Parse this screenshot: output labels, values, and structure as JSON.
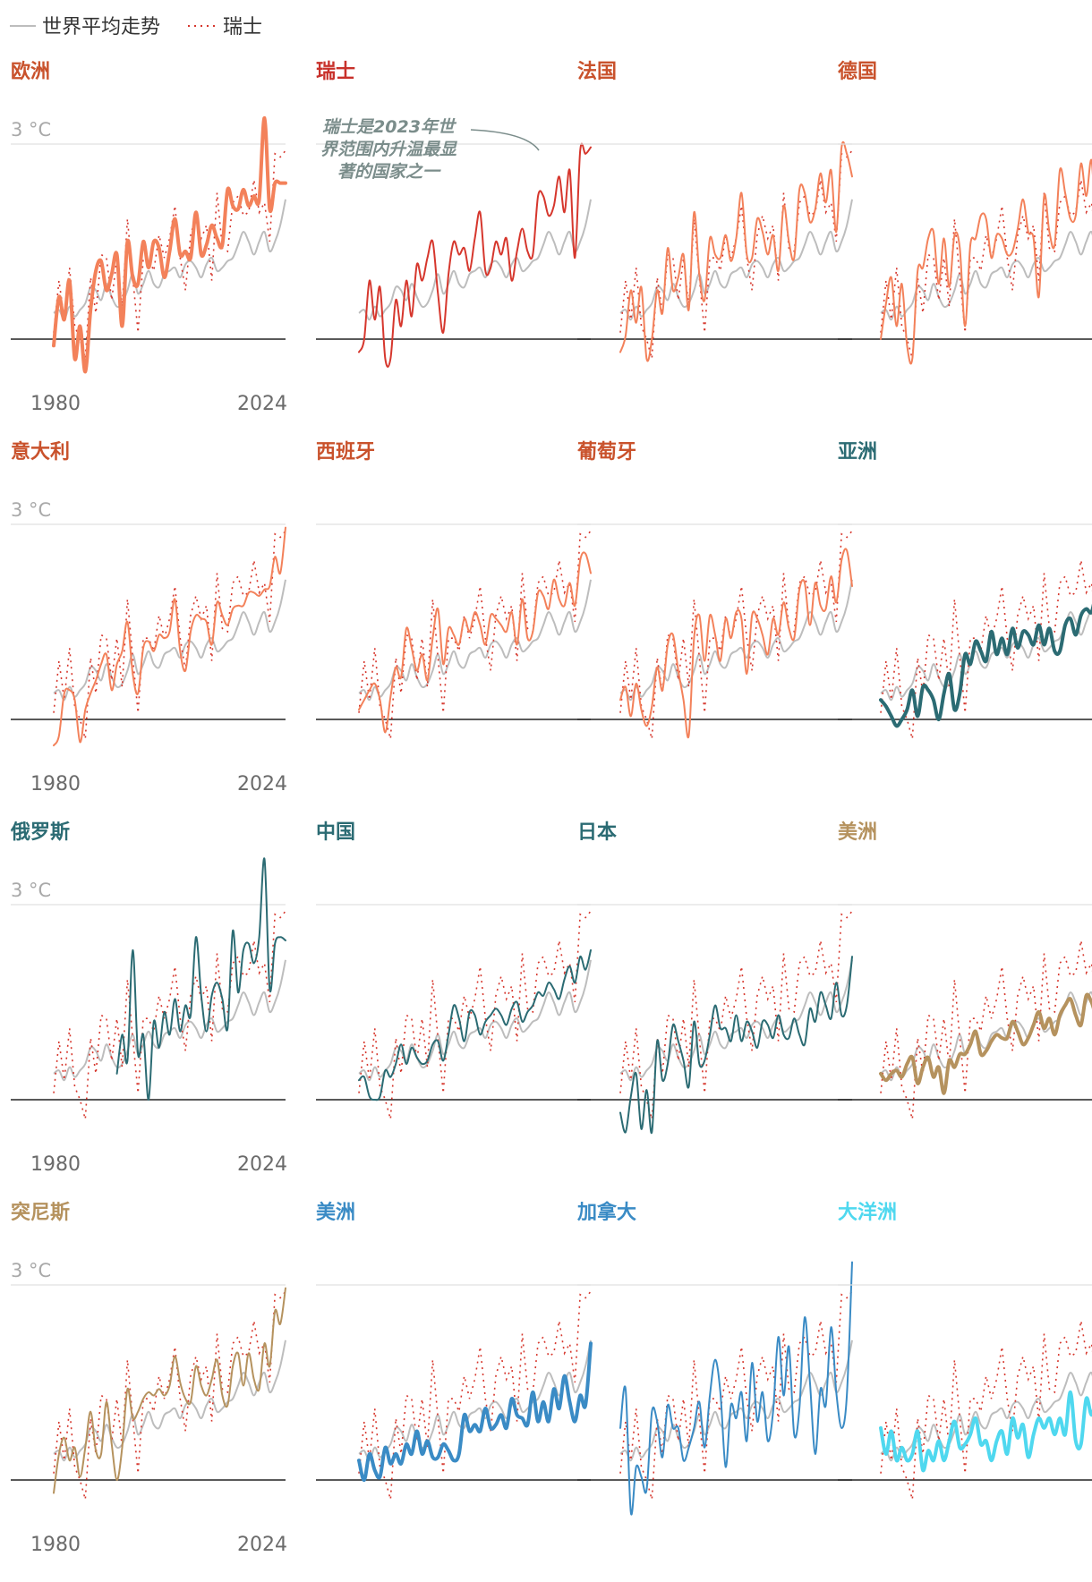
{
  "legend": {
    "world_label": "世界平均走势",
    "swiss_label": "瑞士"
  },
  "colors": {
    "world": "#bdbdbd",
    "swiss": "#d6372d",
    "europe": "#f3815a",
    "europe_title": "#c9522c",
    "swiss_title": "#c8312b",
    "asia": "#2b6b73",
    "americas": "#b5925e",
    "americas_blue": "#3a8bc5",
    "oceania": "#4fd8ef",
    "baseline": "#222222",
    "grid": "#e0e0e0"
  },
  "annotation": {
    "lines": [
      "瑞士是2023年世",
      "界范围内升温最显",
      "著的国家之一"
    ]
  },
  "chart_data": {
    "type": "line",
    "x": [
      1980,
      1981,
      1982,
      1983,
      1984,
      1985,
      1986,
      1987,
      1988,
      1989,
      1990,
      1991,
      1992,
      1993,
      1994,
      1995,
      1996,
      1997,
      1998,
      1999,
      2000,
      2001,
      2002,
      2003,
      2004,
      2005,
      2006,
      2007,
      2008,
      2009,
      2010,
      2011,
      2012,
      2013,
      2014,
      2015,
      2016,
      2017,
      2018,
      2019,
      2020,
      2021,
      2022,
      2023,
      2024
    ],
    "x_tick_labels": [
      "1980",
      "2024"
    ],
    "y_tick_label": "3 °C",
    "ylim": [
      -0.5,
      3.3
    ],
    "grid": true,
    "legend_position": "top-left",
    "world": [
      0.4,
      0.45,
      0.3,
      0.5,
      0.35,
      0.45,
      0.55,
      0.8,
      0.75,
      0.6,
      0.85,
      0.65,
      0.5,
      0.55,
      0.75,
      1.0,
      0.7,
      0.85,
      1.05,
      0.85,
      0.8,
      1.0,
      1.05,
      1.1,
      0.95,
      1.15,
      1.2,
      1.1,
      0.95,
      1.15,
      1.25,
      1.05,
      1.1,
      1.2,
      1.25,
      1.45,
      1.65,
      1.5,
      1.3,
      1.5,
      1.65,
      1.35,
      1.5,
      1.75,
      2.15
    ],
    "swiss": [
      0.1,
      0.9,
      0.3,
      1.1,
      0.2,
      0.0,
      -0.3,
      0.95,
      0.4,
      1.3,
      1.25,
      0.6,
      1.25,
      0.5,
      1.85,
      0.95,
      0.1,
      1.25,
      1.25,
      1.05,
      1.6,
      1.25,
      1.55,
      2.05,
      1.25,
      0.75,
      1.6,
      1.9,
      1.55,
      1.75,
      0.9,
      2.25,
      1.4,
      1.35,
      2.1,
      2.2,
      1.9,
      1.95,
      2.45,
      1.95,
      2.1,
      1.5,
      2.85,
      2.8,
      2.9
    ],
    "regions": [
      {
        "name": "欧洲",
        "group": "europe",
        "width": 4,
        "values": [
          -0.1,
          0.65,
          0.3,
          0.9,
          -0.3,
          0.2,
          -0.6,
          0.45,
          1.05,
          1.2,
          0.75,
          1.0,
          1.3,
          0.2,
          1.5,
          0.95,
          0.85,
          1.5,
          1.1,
          1.5,
          1.4,
          0.95,
          1.35,
          1.85,
          1.3,
          1.35,
          1.25,
          1.95,
          1.3,
          1.45,
          1.75,
          1.55,
          1.45,
          2.3,
          2.05,
          2.0,
          2.3,
          2.05,
          2.2,
          2.15,
          3.4,
          2.0,
          2.4,
          2.4,
          2.4
        ]
      },
      {
        "name": "瑞士",
        "group": "swiss",
        "width": 2,
        "values": [
          -0.2,
          0.0,
          0.9,
          0.3,
          0.8,
          -0.3,
          -0.3,
          0.6,
          0.2,
          0.9,
          0.35,
          1.15,
          0.9,
          1.25,
          1.5,
          0.7,
          0.1,
          1.0,
          1.5,
          1.3,
          1.4,
          1.05,
          1.55,
          1.95,
          1.05,
          1.1,
          1.5,
          1.3,
          1.55,
          0.9,
          1.35,
          1.7,
          1.35,
          1.3,
          2.2,
          2.2,
          1.9,
          2.05,
          2.5,
          1.95,
          2.6,
          1.25,
          2.9,
          2.85,
          2.95
        ]
      },
      {
        "name": "法国",
        "group": "europe",
        "width": 2,
        "values": [
          -0.2,
          0.05,
          0.75,
          0.25,
          0.8,
          -0.3,
          0.0,
          0.75,
          0.4,
          1.4,
          0.75,
          0.95,
          1.3,
          0.45,
          1.95,
          1.0,
          0.6,
          1.55,
          1.3,
          1.25,
          1.6,
          1.2,
          1.55,
          2.25,
          1.3,
          1.25,
          1.85,
          1.65,
          1.3,
          1.6,
          1.05,
          2.05,
          1.5,
          1.25,
          2.3,
          2.25,
          1.8,
          2.0,
          2.55,
          2.1,
          2.6,
          1.65,
          2.95,
          2.85,
          2.5
        ]
      },
      {
        "name": "德国",
        "group": "europe",
        "width": 2,
        "values": [
          0.0,
          0.55,
          0.95,
          0.2,
          0.85,
          -0.1,
          -0.3,
          1.05,
          1.1,
          1.55,
          1.65,
          0.85,
          1.55,
          0.8,
          1.6,
          1.4,
          0.2,
          1.45,
          1.55,
          1.9,
          1.85,
          1.25,
          1.6,
          1.55,
          1.3,
          1.35,
          1.7,
          2.15,
          1.65,
          1.55,
          0.65,
          2.2,
          1.65,
          1.45,
          2.6,
          2.25,
          1.85,
          1.9,
          2.7,
          2.2,
          2.75,
          1.65,
          2.75,
          2.65,
          3.0
        ]
      },
      {
        "name": "意大利",
        "group": "europe",
        "width": 2,
        "values": [
          -0.4,
          -0.25,
          0.4,
          0.45,
          0.3,
          -0.35,
          0.15,
          0.4,
          0.6,
          0.85,
          1.0,
          0.45,
          0.85,
          1.05,
          1.5,
          0.7,
          0.4,
          1.1,
          1.2,
          1.05,
          1.3,
          1.25,
          1.35,
          1.85,
          1.05,
          0.75,
          1.35,
          1.6,
          1.55,
          1.5,
          1.15,
          1.8,
          1.6,
          1.45,
          1.7,
          1.75,
          1.75,
          1.95,
          1.95,
          1.9,
          2.0,
          2.05,
          2.5,
          2.25,
          2.95
        ]
      },
      {
        "name": "西班牙",
        "group": "europe",
        "width": 2,
        "values": [
          0.15,
          0.3,
          0.45,
          0.55,
          0.3,
          -0.2,
          0.35,
          0.8,
          0.65,
          1.4,
          1.1,
          0.75,
          1.0,
          0.6,
          1.25,
          1.7,
          0.85,
          1.4,
          1.3,
          1.15,
          1.55,
          1.35,
          1.65,
          1.45,
          1.15,
          1.6,
          1.55,
          1.45,
          1.35,
          1.65,
          1.15,
          1.85,
          1.25,
          1.35,
          1.95,
          1.9,
          1.7,
          2.15,
          1.85,
          1.75,
          2.1,
          1.75,
          2.45,
          2.55,
          2.25
        ]
      },
      {
        "name": "葡萄牙",
        "group": "europe",
        "width": 2,
        "values": [
          0.3,
          0.5,
          0.05,
          0.55,
          0.15,
          -0.1,
          0.2,
          0.8,
          0.45,
          1.15,
          1.3,
          0.75,
          0.3,
          -0.25,
          1.25,
          1.6,
          0.9,
          1.6,
          1.3,
          0.9,
          1.55,
          1.25,
          1.65,
          1.55,
          0.7,
          1.6,
          1.55,
          1.3,
          1.0,
          1.55,
          1.3,
          1.8,
          1.4,
          1.25,
          2.0,
          2.1,
          1.45,
          2.1,
          1.75,
          1.7,
          2.2,
          1.8,
          2.45,
          2.6,
          2.05
        ]
      },
      {
        "name": "亚洲",
        "group": "asia",
        "width": 4,
        "values": [
          0.3,
          0.2,
          0.05,
          -0.1,
          0.0,
          0.15,
          0.45,
          0.05,
          0.5,
          0.45,
          0.3,
          0.0,
          0.4,
          0.7,
          0.15,
          0.4,
          1.0,
          0.85,
          1.2,
          1.05,
          0.9,
          1.35,
          1.0,
          1.25,
          1.0,
          1.4,
          1.1,
          1.35,
          1.3,
          1.15,
          1.45,
          1.15,
          1.4,
          1.05,
          1.05,
          1.45,
          1.55,
          1.3,
          1.6,
          1.7,
          1.65,
          1.95,
          1.8,
          2.05,
          2.15
        ]
      },
      {
        "name": "俄罗斯",
        "group": "asia",
        "width": 2,
        "values": [
          null,
          null,
          null,
          null,
          null,
          null,
          null,
          null,
          null,
          null,
          null,
          null,
          0.4,
          1.0,
          0.6,
          2.3,
          0.7,
          1.0,
          0.0,
          1.2,
          0.8,
          1.35,
          1.0,
          1.55,
          1.05,
          1.45,
          1.3,
          2.5,
          1.6,
          1.05,
          1.6,
          1.8,
          1.55,
          1.1,
          2.6,
          1.65,
          2.3,
          2.4,
          2.1,
          2.5,
          3.7,
          1.7,
          2.4,
          2.5,
          2.45
        ]
      },
      {
        "name": "中国",
        "group": "asia",
        "width": 2,
        "values": [
          0.3,
          0.35,
          0.05,
          0.0,
          0.05,
          0.45,
          0.35,
          0.55,
          0.85,
          0.55,
          0.8,
          0.65,
          0.55,
          0.6,
          0.85,
          0.9,
          0.6,
          1.0,
          1.45,
          1.25,
          0.9,
          1.35,
          1.3,
          1.0,
          1.2,
          1.3,
          1.4,
          1.3,
          1.15,
          1.4,
          1.5,
          1.2,
          1.35,
          1.45,
          1.65,
          1.6,
          1.8,
          1.7,
          1.55,
          1.85,
          2.05,
          1.8,
          2.2,
          2.0,
          2.3
        ]
      },
      {
        "name": "日本",
        "group": "asia",
        "width": 2,
        "values": [
          -0.2,
          -0.6,
          0.05,
          0.4,
          -0.45,
          0.15,
          -0.5,
          0.9,
          0.3,
          0.55,
          1.15,
          0.9,
          0.6,
          0.2,
          1.2,
          0.55,
          0.6,
          1.0,
          1.45,
          1.1,
          1.1,
          0.9,
          1.3,
          0.9,
          1.2,
          1.05,
          0.8,
          1.2,
          1.15,
          0.95,
          1.3,
          1.0,
          0.95,
          1.25,
          1.0,
          0.85,
          1.4,
          1.2,
          1.65,
          1.45,
          1.25,
          1.8,
          1.3,
          1.45,
          2.2
        ]
      },
      {
        "name": "美洲",
        "group": "americas",
        "width": 4,
        "values": [
          0.4,
          0.3,
          0.4,
          0.45,
          0.35,
          0.55,
          0.65,
          0.25,
          0.5,
          0.65,
          0.35,
          0.5,
          0.1,
          0.6,
          0.5,
          0.7,
          0.7,
          0.85,
          1.05,
          0.7,
          0.75,
          0.9,
          1.0,
          0.95,
          0.95,
          1.2,
          1.05,
          0.85,
          0.95,
          1.15,
          1.35,
          1.1,
          1.25,
          1.0,
          1.3,
          1.45,
          1.55,
          1.3,
          1.15,
          1.6,
          1.5,
          1.3,
          1.6,
          1.5,
          1.8
        ]
      },
      {
        "name": "突尼斯",
        "group": "americas",
        "width": 2,
        "values": [
          -0.2,
          0.4,
          0.65,
          0.3,
          0.5,
          0.05,
          0.5,
          1.05,
          0.45,
          0.4,
          1.2,
          0.55,
          0.0,
          0.5,
          1.4,
          0.95,
          1.05,
          1.25,
          1.35,
          1.3,
          1.4,
          1.3,
          1.45,
          1.9,
          1.5,
          1.25,
          1.2,
          1.75,
          1.45,
          1.3,
          1.55,
          1.85,
          1.3,
          1.15,
          1.75,
          1.95,
          1.45,
          1.95,
          1.55,
          1.4,
          2.1,
          1.75,
          2.6,
          2.4,
          2.95
        ]
      },
      {
        "name": "美洲",
        "group": "americas_blue",
        "width": 4,
        "values": [
          0.3,
          0.0,
          0.4,
          0.15,
          0.05,
          0.5,
          0.25,
          0.4,
          0.25,
          0.55,
          0.4,
          0.75,
          0.4,
          0.6,
          0.35,
          0.35,
          0.55,
          0.45,
          0.3,
          0.4,
          1.0,
          0.75,
          0.85,
          0.75,
          1.1,
          0.8,
          0.85,
          1.0,
          0.8,
          1.25,
          1.0,
          0.95,
          0.85,
          1.35,
          0.9,
          1.2,
          0.9,
          1.4,
          1.1,
          1.6,
          1.2,
          0.9,
          1.3,
          1.15,
          2.1
        ]
      },
      {
        "name": "加拿大",
        "group": "americas_blue",
        "width": 2,
        "values": [
          0.8,
          1.4,
          -0.6,
          0.2,
          0.05,
          -0.15,
          1.05,
          0.9,
          0.35,
          1.15,
          0.8,
          0.8,
          0.3,
          0.5,
          0.8,
          1.2,
          0.5,
          1.3,
          1.85,
          1.35,
          0.2,
          1.15,
          0.95,
          1.35,
          0.6,
          1.8,
          0.9,
          1.35,
          0.6,
          1.05,
          2.2,
          1.3,
          2.05,
          0.7,
          1.1,
          2.5,
          1.5,
          0.4,
          1.4,
          1.15,
          2.35,
          1.35,
          0.8,
          1.3,
          3.35
        ]
      },
      {
        "name": "大洋洲",
        "group": "oceania",
        "width": 4,
        "values": [
          0.8,
          0.4,
          0.75,
          0.3,
          0.5,
          0.3,
          0.4,
          0.75,
          0.15,
          0.45,
          0.3,
          0.6,
          0.3,
          0.6,
          0.9,
          0.5,
          0.55,
          0.7,
          0.95,
          0.55,
          0.6,
          0.3,
          0.6,
          0.75,
          0.4,
          0.95,
          0.65,
          0.85,
          0.35,
          0.7,
          0.95,
          0.8,
          0.95,
          0.7,
          0.95,
          0.7,
          1.35,
          0.6,
          0.55,
          1.25,
          1.0,
          1.25,
          1.2,
          0.6,
          1.5
        ]
      }
    ]
  }
}
